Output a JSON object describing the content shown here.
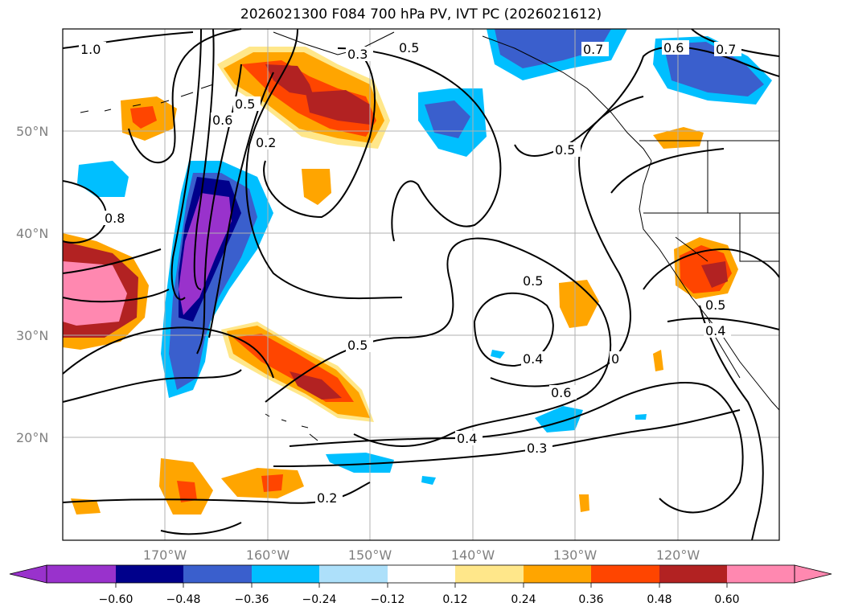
{
  "title": "2026021300 F084 700 hPa PV, IVT PC (2026021612)",
  "lat_labels": [
    "50°N",
    "40°N",
    "30°N",
    "20°N"
  ],
  "lon_labels": [
    "170°W",
    "160°W",
    "150°W",
    "140°W",
    "130°W",
    "120°W"
  ],
  "contour_labels": [
    "1.0",
    "0.3",
    "0.5",
    "0.7",
    "0.6",
    "0.7",
    "0.5",
    "0.6",
    "0.2",
    "0.8",
    "0.5",
    "0.5",
    "0.4",
    "0.5",
    "0.6",
    "0.4",
    "0.3",
    "0.2",
    "0.5",
    "0.4",
    "0"
  ],
  "colorbar": {
    "ticks": [
      "−0.60",
      "−0.48",
      "−0.36",
      "−0.24",
      "−0.12",
      "0.12",
      "0.24",
      "0.36",
      "0.48",
      "0.60"
    ],
    "colors": [
      "#9932CC",
      "#00008B",
      "#3A5FCD",
      "#00BFFF",
      "#ADE0FA",
      "#FFFFFF",
      "#FFE78A",
      "#FFA500",
      "#FF4500",
      "#B22222",
      "#FF88B0",
      "#FF88B0"
    ]
  }
}
